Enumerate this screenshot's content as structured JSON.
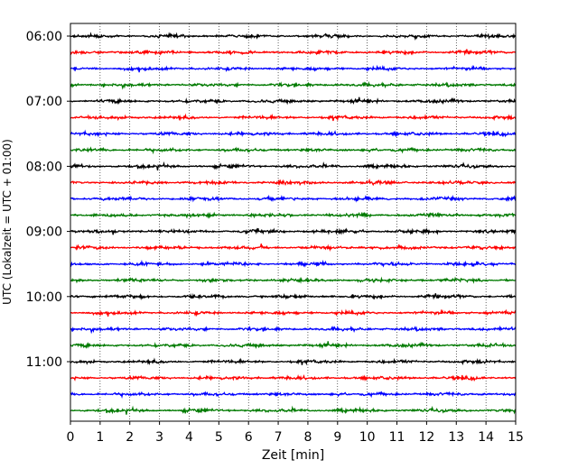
{
  "chart_data": {
    "type": "line",
    "title": "",
    "xlabel": "Zeit  [min]",
    "ylabel": "UTC (Lokalzeit = UTC + 01:00)",
    "xlim": [
      0,
      15
    ],
    "x_ticks": [
      "0",
      "1",
      "2",
      "3",
      "4",
      "5",
      "6",
      "7",
      "8",
      "9",
      "10",
      "11",
      "12",
      "13",
      "14",
      "15"
    ],
    "y_ticks": [
      "06:00",
      "07:00",
      "08:00",
      "09:00",
      "10:00",
      "11:00"
    ],
    "grid": "vertical dotted",
    "legend": "none",
    "trace_colors": [
      "#000000",
      "#ff0000",
      "#0000ff",
      "#007a00"
    ],
    "series": [
      {
        "start": "06:00",
        "color": "#000000"
      },
      {
        "start": "06:15",
        "color": "#ff0000"
      },
      {
        "start": "06:30",
        "color": "#0000ff"
      },
      {
        "start": "06:45",
        "color": "#007a00"
      },
      {
        "start": "07:00",
        "color": "#000000"
      },
      {
        "start": "07:15",
        "color": "#ff0000"
      },
      {
        "start": "07:30",
        "color": "#0000ff"
      },
      {
        "start": "07:45",
        "color": "#007a00"
      },
      {
        "start": "08:00",
        "color": "#000000"
      },
      {
        "start": "08:15",
        "color": "#ff0000"
      },
      {
        "start": "08:30",
        "color": "#0000ff"
      },
      {
        "start": "08:45",
        "color": "#007a00"
      },
      {
        "start": "09:00",
        "color": "#000000"
      },
      {
        "start": "09:15",
        "color": "#ff0000"
      },
      {
        "start": "09:30",
        "color": "#0000ff"
      },
      {
        "start": "09:45",
        "color": "#007a00"
      },
      {
        "start": "10:00",
        "color": "#000000"
      },
      {
        "start": "10:15",
        "color": "#ff0000"
      },
      {
        "start": "10:30",
        "color": "#0000ff"
      },
      {
        "start": "10:45",
        "color": "#007a00"
      },
      {
        "start": "11:00",
        "color": "#000000"
      },
      {
        "start": "11:15",
        "color": "#ff0000"
      },
      {
        "start": "11:30",
        "color": "#0000ff"
      },
      {
        "start": "11:45",
        "color": "#007a00"
      }
    ]
  }
}
